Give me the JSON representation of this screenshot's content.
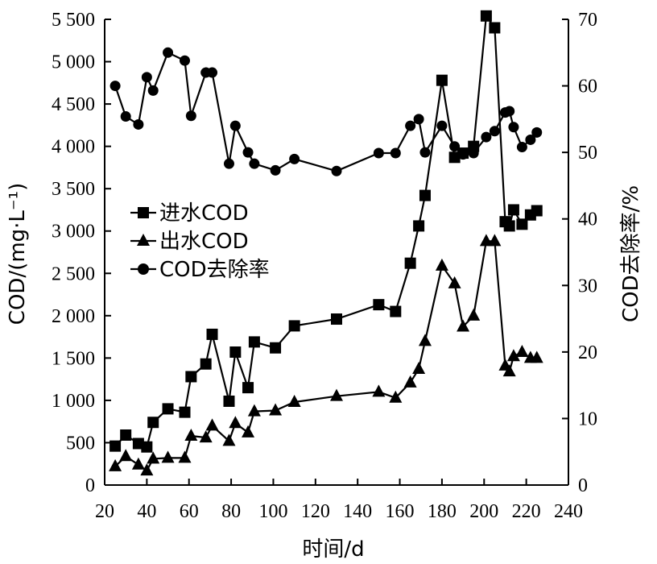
{
  "chart_data": {
    "type": "line",
    "xlabel": "时间/d",
    "ylabel_left": "COD/(mg·L⁻¹)",
    "ylabel_right": "COD去除率/%",
    "xlim": [
      20,
      240
    ],
    "ylim_left": [
      0,
      5500
    ],
    "ylim_right": [
      0,
      70
    ],
    "x_ticks": [
      20,
      40,
      60,
      80,
      100,
      120,
      140,
      160,
      180,
      200,
      220,
      240
    ],
    "x_tick_labels": [
      "20",
      "40",
      "60",
      "80",
      "100",
      "120",
      "140",
      "160",
      "180",
      "200",
      "220",
      "240"
    ],
    "y_left_ticks": [
      0,
      500,
      1000,
      1500,
      2000,
      2500,
      3000,
      3500,
      4000,
      4500,
      5000,
      5500
    ],
    "y_left_tick_labels": [
      "0",
      "500",
      "1 000",
      "1 500",
      "2 000",
      "2 500",
      "3 000",
      "3 500",
      "4 000",
      "4 500",
      "5 000",
      "5 500"
    ],
    "y_right_ticks": [
      0,
      10,
      20,
      30,
      40,
      50,
      60,
      70
    ],
    "y_right_tick_labels": [
      "0",
      "10",
      "20",
      "30",
      "40",
      "50",
      "60",
      "70"
    ],
    "grid": false,
    "legend_position": "middle-left",
    "series": [
      {
        "name": "进水COD",
        "axis": "left",
        "marker": "square",
        "x": [
          25,
          30,
          36,
          40,
          43,
          50,
          58,
          61,
          68,
          71,
          79,
          82,
          88,
          91,
          101,
          110,
          130,
          150,
          158,
          165,
          169,
          172,
          180,
          186,
          190,
          195,
          201,
          205,
          210,
          212,
          214,
          218,
          222,
          225
        ],
        "values": [
          460,
          590,
          490,
          450,
          740,
          900,
          860,
          1280,
          1430,
          1780,
          990,
          1570,
          1150,
          1690,
          1620,
          1880,
          1960,
          2130,
          2050,
          2620,
          3060,
          3420,
          4780,
          3870,
          3920,
          4000,
          5540,
          5400,
          3110,
          3060,
          3250,
          3080,
          3190,
          3240
        ]
      },
      {
        "name": "出水COD",
        "axis": "left",
        "marker": "triangle",
        "x": [
          25,
          30,
          36,
          40,
          43,
          50,
          58,
          61,
          68,
          71,
          79,
          82,
          88,
          91,
          101,
          110,
          130,
          150,
          158,
          165,
          169,
          172,
          180,
          186,
          190,
          195,
          201,
          205,
          210,
          212,
          214,
          218,
          222,
          225
        ],
        "values": [
          220,
          340,
          240,
          170,
          310,
          320,
          320,
          580,
          560,
          700,
          520,
          730,
          620,
          870,
          880,
          980,
          1050,
          1100,
          1030,
          1210,
          1370,
          1700,
          2590,
          2380,
          1870,
          2000,
          2880,
          2880,
          1410,
          1340,
          1520,
          1570,
          1500,
          1500
        ]
      },
      {
        "name": "COD去除率",
        "axis": "right",
        "marker": "circle",
        "x": [
          25,
          30,
          36,
          40,
          43,
          50,
          58,
          61,
          68,
          71,
          79,
          82,
          88,
          91,
          101,
          110,
          130,
          150,
          158,
          165,
          169,
          172,
          180,
          186,
          190,
          195,
          201,
          205,
          210,
          212,
          214,
          218,
          222,
          225
        ],
        "values": [
          60,
          55.4,
          54.2,
          61.3,
          59.3,
          65,
          63.8,
          55.5,
          62,
          62,
          48.3,
          54,
          50,
          48.3,
          47.3,
          49,
          47.2,
          49.9,
          49.9,
          54,
          55,
          50,
          54,
          50.9,
          49.7,
          49.9,
          52.3,
          53.2,
          56,
          56.2,
          53.8,
          50.8,
          51.9,
          53
        ]
      }
    ]
  }
}
